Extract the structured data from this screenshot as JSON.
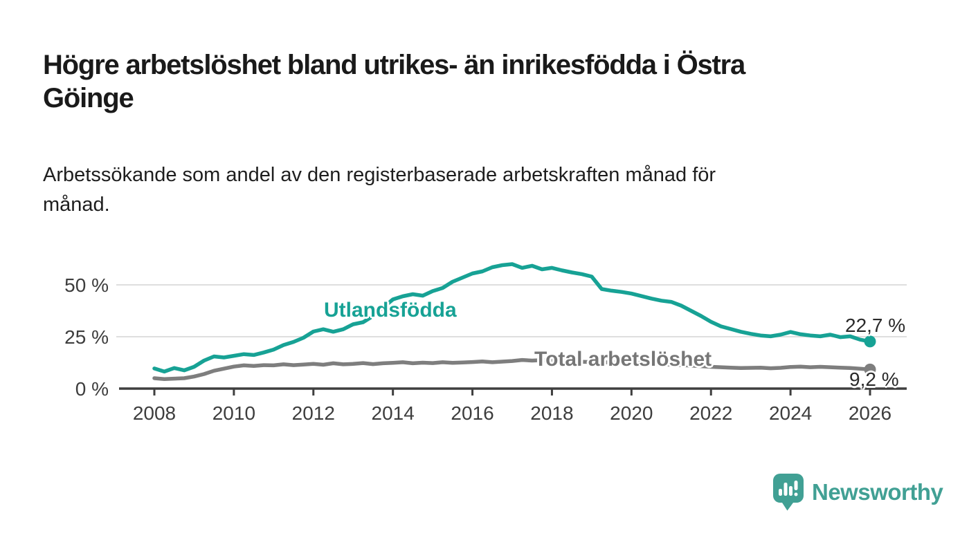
{
  "header": {
    "title": "Högre arbetslöshet bland utrikes- än inrikesfödda i Östra Göinge",
    "title_line1": "Högre arbetslöshet bland utrikes- än inrikesfödda i Östra",
    "title_line2": "Göinge",
    "subtitle_line1": "Arbetssökande som andel av den registerbaserade arbetskraften månad för",
    "subtitle_line2": "månad."
  },
  "brand": {
    "name": "Newsworthy",
    "icon": "newsworthy-speech-bubble-bar-chart-icon",
    "color": "#41a094"
  },
  "colors": {
    "series_utlandsfodda": "#17a295",
    "series_total": "#7e7e7e",
    "gridline": "#dedede",
    "axis": "#3f3f3f",
    "tick_text": "#3d3d3d"
  },
  "chart_data": {
    "type": "line",
    "title": "Högre arbetslöshet bland utrikes- än inrikesfödda i Östra Göinge",
    "subtitle": "Arbetssökande som andel av den registerbaserade arbetskraften månad för månad.",
    "xlabel": "",
    "ylabel": "",
    "x_range": [
      2008,
      2026
    ],
    "y_range": [
      0,
      62
    ],
    "grid": "horizontal-only",
    "legend_position": "inline-labels",
    "x_ticks": [
      2008,
      2010,
      2012,
      2014,
      2016,
      2018,
      2020,
      2022,
      2024,
      2026
    ],
    "y_ticks": [
      {
        "value": 0,
        "label": "0 %"
      },
      {
        "value": 25,
        "label": "25 %"
      },
      {
        "value": 50,
        "label": "50 %"
      }
    ],
    "series": [
      {
        "name": "Utlandsfödda",
        "color": "#17a295",
        "end_value": 22.7,
        "end_label": "22,7 %",
        "points": [
          [
            2008.0,
            9.7
          ],
          [
            2008.25,
            8.2
          ],
          [
            2008.5,
            9.9
          ],
          [
            2008.75,
            8.8
          ],
          [
            2009.0,
            10.5
          ],
          [
            2009.25,
            13.5
          ],
          [
            2009.5,
            15.5
          ],
          [
            2009.75,
            15.0
          ],
          [
            2010.0,
            15.8
          ],
          [
            2010.25,
            16.6
          ],
          [
            2010.5,
            16.2
          ],
          [
            2010.75,
            17.4
          ],
          [
            2011.0,
            18.8
          ],
          [
            2011.25,
            21.0
          ],
          [
            2011.5,
            22.5
          ],
          [
            2011.75,
            24.5
          ],
          [
            2012.0,
            27.5
          ],
          [
            2012.25,
            28.6
          ],
          [
            2012.5,
            27.4
          ],
          [
            2012.75,
            28.6
          ],
          [
            2013.0,
            31.0
          ],
          [
            2013.25,
            32.0
          ],
          [
            2013.5,
            35.0
          ],
          [
            2013.75,
            39.0
          ],
          [
            2014.0,
            43.0
          ],
          [
            2014.25,
            44.5
          ],
          [
            2014.5,
            45.5
          ],
          [
            2014.75,
            44.8
          ],
          [
            2015.0,
            47.0
          ],
          [
            2015.25,
            48.5
          ],
          [
            2015.5,
            51.5
          ],
          [
            2015.75,
            53.5
          ],
          [
            2016.0,
            55.5
          ],
          [
            2016.25,
            56.5
          ],
          [
            2016.5,
            58.5
          ],
          [
            2016.75,
            59.5
          ],
          [
            2017.0,
            60.0
          ],
          [
            2017.25,
            58.2
          ],
          [
            2017.5,
            59.2
          ],
          [
            2017.75,
            57.5
          ],
          [
            2018.0,
            58.2
          ],
          [
            2018.25,
            57.0
          ],
          [
            2018.5,
            56.0
          ],
          [
            2018.75,
            55.2
          ],
          [
            2019.0,
            54.0
          ],
          [
            2019.25,
            48.0
          ],
          [
            2019.5,
            47.2
          ],
          [
            2019.75,
            46.6
          ],
          [
            2020.0,
            45.8
          ],
          [
            2020.25,
            44.6
          ],
          [
            2020.5,
            43.4
          ],
          [
            2020.75,
            42.4
          ],
          [
            2021.0,
            41.8
          ],
          [
            2021.25,
            40.0
          ],
          [
            2021.5,
            37.5
          ],
          [
            2021.75,
            35.0
          ],
          [
            2022.0,
            32.2
          ],
          [
            2022.25,
            30.0
          ],
          [
            2022.5,
            28.7
          ],
          [
            2022.75,
            27.4
          ],
          [
            2023.0,
            26.4
          ],
          [
            2023.25,
            25.6
          ],
          [
            2023.5,
            25.2
          ],
          [
            2023.75,
            26.0
          ],
          [
            2024.0,
            27.3
          ],
          [
            2024.25,
            26.2
          ],
          [
            2024.5,
            25.6
          ],
          [
            2024.75,
            25.2
          ],
          [
            2025.0,
            26.0
          ],
          [
            2025.25,
            24.8
          ],
          [
            2025.5,
            25.2
          ],
          [
            2025.75,
            23.6
          ],
          [
            2026.0,
            22.7
          ]
        ]
      },
      {
        "name": "Total arbetslöshet",
        "color": "#7e7e7e",
        "end_value": 9.2,
        "end_label": "9,2 %",
        "points": [
          [
            2008.0,
            5.0
          ],
          [
            2008.25,
            4.6
          ],
          [
            2008.5,
            4.8
          ],
          [
            2008.75,
            5.0
          ],
          [
            2009.0,
            5.8
          ],
          [
            2009.25,
            7.0
          ],
          [
            2009.5,
            8.6
          ],
          [
            2009.75,
            9.6
          ],
          [
            2010.0,
            10.6
          ],
          [
            2010.25,
            11.2
          ],
          [
            2010.5,
            10.9
          ],
          [
            2010.75,
            11.3
          ],
          [
            2011.0,
            11.2
          ],
          [
            2011.25,
            11.7
          ],
          [
            2011.5,
            11.3
          ],
          [
            2011.75,
            11.6
          ],
          [
            2012.0,
            11.9
          ],
          [
            2012.25,
            11.5
          ],
          [
            2012.5,
            12.2
          ],
          [
            2012.75,
            11.7
          ],
          [
            2013.0,
            11.9
          ],
          [
            2013.25,
            12.3
          ],
          [
            2013.5,
            11.8
          ],
          [
            2013.75,
            12.2
          ],
          [
            2014.0,
            12.4
          ],
          [
            2014.25,
            12.7
          ],
          [
            2014.5,
            12.2
          ],
          [
            2014.75,
            12.5
          ],
          [
            2015.0,
            12.3
          ],
          [
            2015.25,
            12.7
          ],
          [
            2015.5,
            12.4
          ],
          [
            2015.75,
            12.6
          ],
          [
            2016.0,
            12.8
          ],
          [
            2016.25,
            13.1
          ],
          [
            2016.5,
            12.7
          ],
          [
            2016.75,
            13.0
          ],
          [
            2017.0,
            13.3
          ],
          [
            2017.25,
            13.8
          ],
          [
            2017.5,
            13.5
          ],
          [
            2017.75,
            13.7
          ],
          [
            2018.0,
            13.4
          ],
          [
            2018.25,
            13.5
          ],
          [
            2018.5,
            13.1
          ],
          [
            2018.75,
            12.9
          ],
          [
            2019.0,
            12.8
          ],
          [
            2019.25,
            12.6
          ],
          [
            2019.5,
            12.7
          ],
          [
            2019.75,
            12.4
          ],
          [
            2020.0,
            12.2
          ],
          [
            2020.25,
            12.4
          ],
          [
            2020.5,
            12.0
          ],
          [
            2020.75,
            11.8
          ],
          [
            2021.0,
            11.5
          ],
          [
            2021.25,
            11.3
          ],
          [
            2021.5,
            11.1
          ],
          [
            2021.75,
            10.8
          ],
          [
            2022.0,
            10.5
          ],
          [
            2022.25,
            10.3
          ],
          [
            2022.5,
            10.1
          ],
          [
            2022.75,
            9.9
          ],
          [
            2023.0,
            10.0
          ],
          [
            2023.25,
            10.1
          ],
          [
            2023.5,
            9.8
          ],
          [
            2023.75,
            10.0
          ],
          [
            2024.0,
            10.4
          ],
          [
            2024.25,
            10.6
          ],
          [
            2024.5,
            10.3
          ],
          [
            2024.75,
            10.5
          ],
          [
            2025.0,
            10.3
          ],
          [
            2025.25,
            10.1
          ],
          [
            2025.5,
            9.9
          ],
          [
            2025.75,
            9.6
          ],
          [
            2026.0,
            9.2
          ]
        ]
      }
    ]
  }
}
